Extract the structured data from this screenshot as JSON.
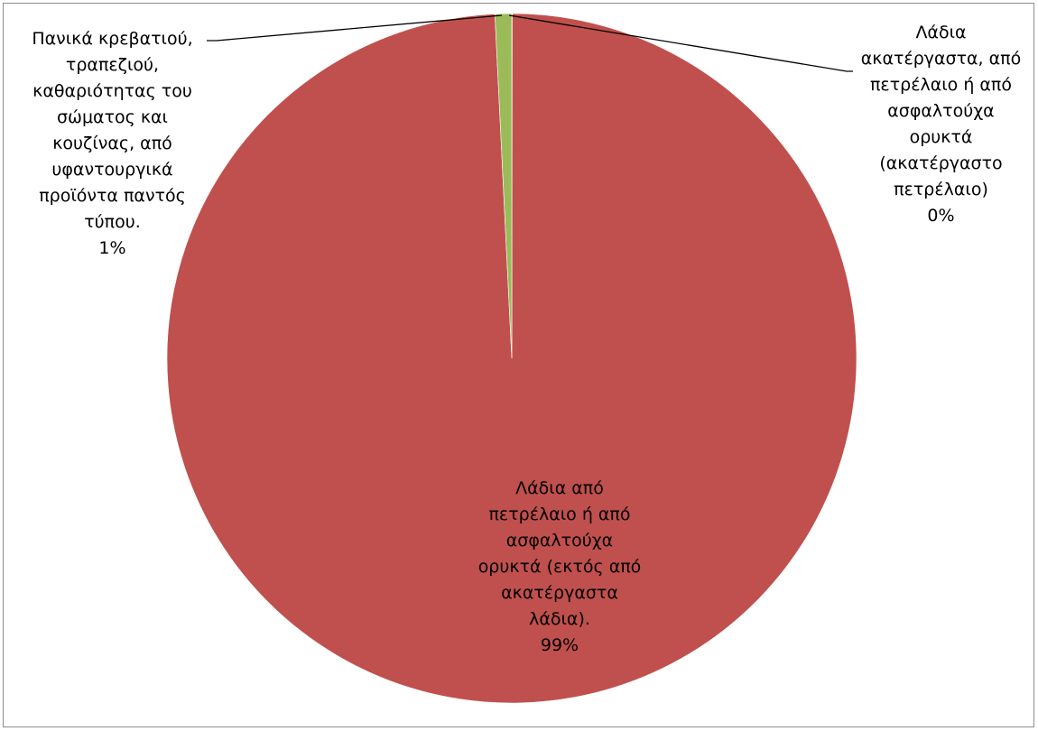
{
  "chart_data": {
    "type": "pie",
    "start_angle_deg": 0,
    "direction": "clockwise",
    "slices": [
      {
        "label": "Λάδια ακατέργαστα, από πετρέλαιο ή από ασφαλτούχα ορυκτά (ακατέργαστο πετρέλαιο)",
        "value": 0.02,
        "percent_label": "0%",
        "color": "#4F81BD",
        "display_text": "Λάδια\nακατέργαστα, από\nπετρέλαιο ή από\nασφαλτούχα\nορυκτά\n(ακατέργαστο\nπετρέλαιο)\n0%"
      },
      {
        "label": "Λάδια από πετρέλαιο ή από ασφαλτούχα ορυκτά (εκτός από ακατέργαστα λάδια).",
        "value": 99.2,
        "percent_label": "99%",
        "color": "#C0504D",
        "display_text": "Λάδια από\nπετρέλαιο ή από\nασφαλτούχα\nορυκτά (εκτός από\nακατέργαστα\nλάδια).\n99%"
      },
      {
        "label": "Πανικά κρεβατιού, τραπεζιού, καθαριότητας του σώματος και κουζίνας, από υφαντουργικά προϊόντα παντός τύπου.",
        "value": 0.78,
        "percent_label": "1%",
        "color": "#9BBB59",
        "display_text": "Πανικά κρεβατιού,\nτραπεζιού,\nκαθαριότητας του\nσώματος και\nκουζίνας, από\nυφαντουργικά\nπροϊόντα παντός\nτύπου.\n1%"
      }
    ],
    "legend": false
  },
  "colors": {
    "border": "#8c8c8c",
    "slice_edge": "#ffffff",
    "leader_line": "#000000"
  }
}
